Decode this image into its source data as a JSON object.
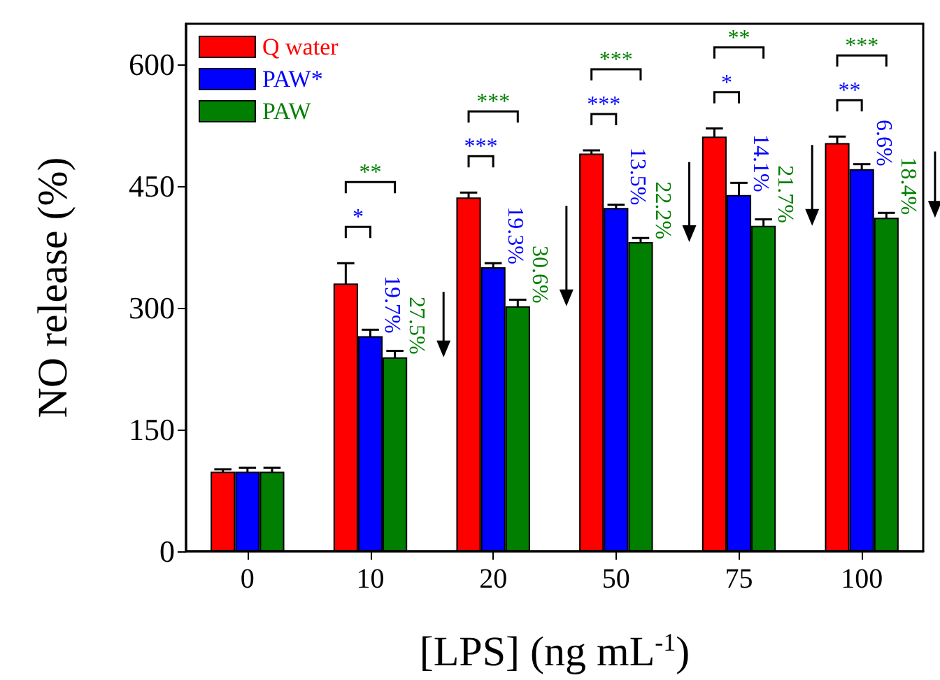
{
  "chart_data": {
    "type": "bar",
    "ylabel": "NO release (%)",
    "xlabel": "[LPS] (ng mL$^{-1}$)",
    "categories": [
      "0",
      "10",
      "20",
      "50",
      "75",
      "100"
    ],
    "ylim": [
      0,
      650
    ],
    "yticks": [
      0,
      150,
      300,
      450,
      600
    ],
    "legend": "top left",
    "grid": false,
    "series": [
      {
        "name": "Q water",
        "color": "#ff0000",
        "values": [
          98,
          330,
          436,
          490,
          511,
          503
        ],
        "errors": [
          3,
          25,
          6,
          4,
          10,
          8
        ]
      },
      {
        "name": "PAW*",
        "color": "#0000ff",
        "values": [
          98,
          265,
          350,
          423,
          439,
          471
        ],
        "errors": [
          5,
          8,
          5,
          4,
          15,
          6
        ]
      },
      {
        "name": "PAW",
        "color": "#007f00",
        "values": [
          98,
          239,
          302,
          381,
          401,
          411
        ],
        "errors": [
          5,
          8,
          8,
          5,
          8,
          6
        ]
      }
    ],
    "annotations": [
      {
        "text": "19.7%",
        "x": "10",
        "y": 265
      },
      {
        "text": "19.3%",
        "x": "20",
        "y": 350
      },
      {
        "text": "13.5%",
        "x": "50",
        "y": 423
      },
      {
        "text": "14.1%",
        "x": "75",
        "y": 439
      },
      {
        "text": "6.6%",
        "x": "100",
        "y": 471
      },
      "27.5%",
      "*",
      "**",
      "30.6%",
      "***",
      "***",
      "22.2%",
      "***",
      "***",
      "21.7%",
      "*",
      "**",
      "18.4%",
      "**",
      "***"
    ]
  }
}
